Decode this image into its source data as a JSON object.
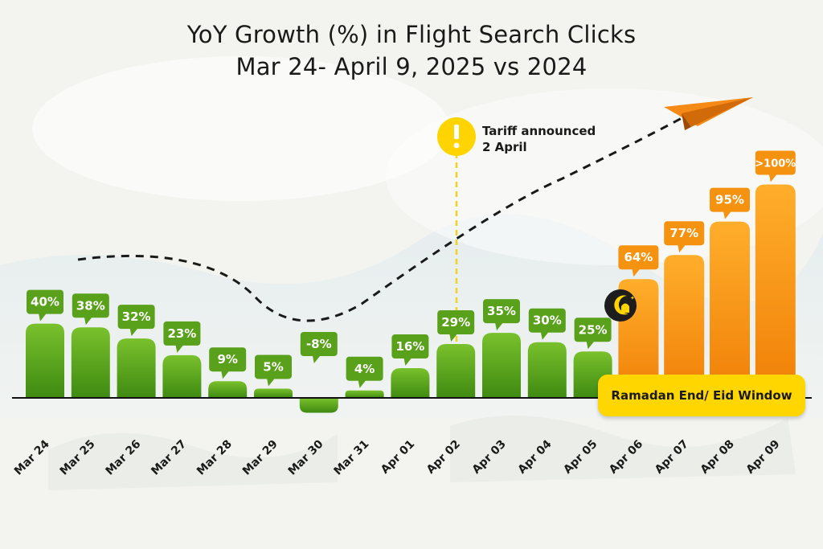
{
  "chart_data": {
    "type": "bar",
    "title": "YoY Growth (%) in Flight Search Clicks",
    "subtitle": "Mar 24- April 9, 2025 vs 2024",
    "categories": [
      "Mar 24",
      "Mar 25",
      "Mar 26",
      "Mar 27",
      "Mar 28",
      "Mar 29",
      "Mar 30",
      "Mar 31",
      "Apr 01",
      "Apr 02",
      "Apr 03",
      "Apr 04",
      "Apr 05",
      "Apr 06",
      "Apr 07",
      "Apr 08",
      "Apr 09"
    ],
    "values": [
      40,
      38,
      32,
      23,
      9,
      5,
      -8,
      4,
      16,
      29,
      35,
      30,
      25,
      64,
      77,
      95,
      115
    ],
    "data_labels": [
      "40%",
      "38%",
      "32%",
      "23%",
      "9%",
      "5%",
      "-8%",
      "4%",
      "16%",
      "29%",
      "35%",
      "30%",
      "25%",
      "64%",
      "77%",
      "95%",
      ">100%"
    ],
    "ylim": [
      -10,
      120
    ],
    "grid": false,
    "colors": {
      "normal": "#5aa11b",
      "eid_window": "#f5920f"
    },
    "highlight_range": [
      "Apr 06",
      "Apr 09"
    ],
    "annotations": {
      "tariff": {
        "category": "Apr 02",
        "line1": "Tariff announced",
        "line2": "2 April"
      },
      "eid_window": {
        "label": "Ramadan End/ Eid Window"
      }
    }
  }
}
